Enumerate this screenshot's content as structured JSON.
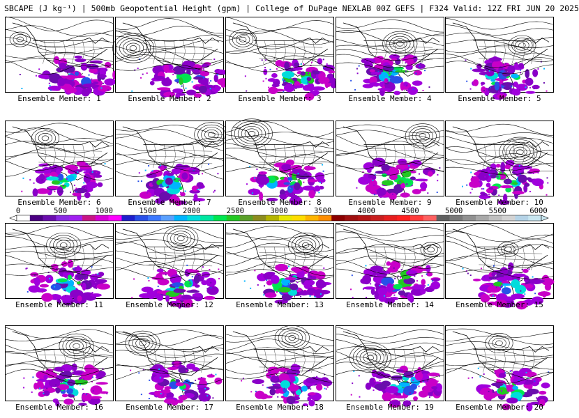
{
  "header": {
    "title": "SBCAPE (J kg⁻¹) | 500mb Geopotential Height (gpm) | College of DuPage NEXLAB 00Z GEFS | F324 Valid: 12Z FRI JUN 20 2025"
  },
  "members": [
    {
      "caption": "Ensemble Member: 1"
    },
    {
      "caption": "Ensemble Member: 2"
    },
    {
      "caption": "Ensemble Member: 3"
    },
    {
      "caption": "Ensemble Member: 4"
    },
    {
      "caption": "Ensemble Member: 5"
    },
    {
      "caption": "Ensemble Member: 6"
    },
    {
      "caption": "Ensemble Member: 7"
    },
    {
      "caption": "Ensemble Member: 8"
    },
    {
      "caption": "Ensemble Member: 9"
    },
    {
      "caption": "Ensemble Member: 10"
    },
    {
      "caption": "Ensemble Member: 11"
    },
    {
      "caption": "Ensemble Member: 12"
    },
    {
      "caption": "Ensemble Member: 13"
    },
    {
      "caption": "Ensemble Member: 14"
    },
    {
      "caption": "Ensemble Member: 15"
    },
    {
      "caption": "Ensemble Member: 16"
    },
    {
      "caption": "Ensemble Member: 17"
    },
    {
      "caption": "Ensemble Member: 18"
    },
    {
      "caption": "Ensemble Member: 19"
    },
    {
      "caption": "Ensemble Member: 20"
    }
  ],
  "colorbar": {
    "labels": [
      "0",
      "500",
      "1000",
      "1500",
      "2000",
      "2500",
      "3000",
      "3500",
      "4000",
      "4500",
      "5000",
      "5500",
      "6000"
    ],
    "colors": [
      "#ffffff",
      "#4b0082",
      "#6a0dad",
      "#8a2be2",
      "#a020f0",
      "#c71585",
      "#d500d5",
      "#ff00ff",
      "#1e1ecc",
      "#2850e8",
      "#3c78ff",
      "#5aa0ff",
      "#00b4ff",
      "#00dcdc",
      "#00e6a0",
      "#00e650",
      "#22c822",
      "#5aa028",
      "#8c8c1e",
      "#b4b400",
      "#e6e600",
      "#ffdc00",
      "#ffb400",
      "#ff8c00",
      "#8b0000",
      "#a01010",
      "#b41414",
      "#c81e1e",
      "#e61e1e",
      "#ff2020",
      "#ff3c3c",
      "#ff6060",
      "#606060",
      "#787878",
      "#909090",
      "#a8a8a8",
      "#c0c0c0",
      "#d2d2d2",
      "#b4d2e6",
      "#c8e6f0"
    ]
  }
}
